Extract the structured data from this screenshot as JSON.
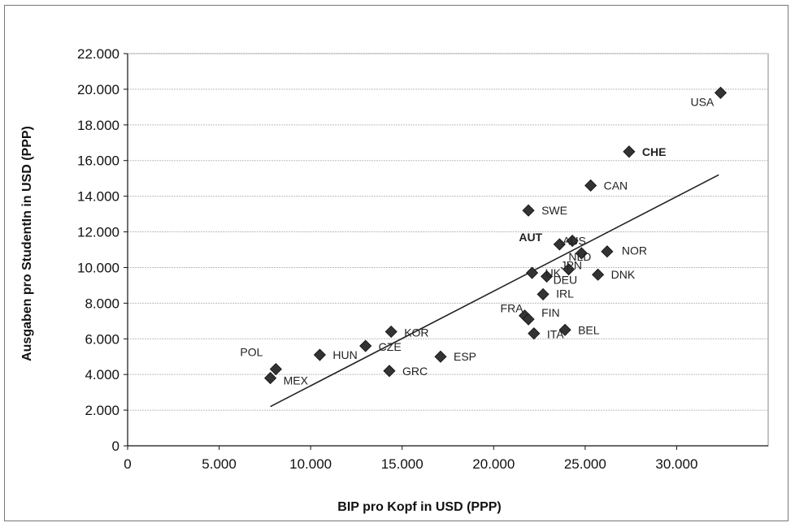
{
  "chart_data": {
    "type": "scatter",
    "xlabel": "BIP pro Kopf in USD (PPP)",
    "ylabel": "Ausgaben pro StudentIn in USD (PPP)",
    "xlim": [
      0,
      35000
    ],
    "ylim": [
      0,
      22000
    ],
    "x_ticks": [
      0,
      5000,
      10000,
      15000,
      20000,
      25000,
      30000
    ],
    "x_tick_labels": [
      "0",
      "5.000",
      "10.000",
      "15.000",
      "20.000",
      "25.000",
      "30.000"
    ],
    "y_ticks": [
      0,
      2000,
      4000,
      6000,
      8000,
      10000,
      12000,
      14000,
      16000,
      18000,
      20000,
      22000
    ],
    "y_tick_labels": [
      "0",
      "2.000",
      "4.000",
      "6.000",
      "8.000",
      "10.000",
      "12.000",
      "14.000",
      "16.000",
      "18.000",
      "20.000",
      "22.000"
    ],
    "grid": "horizontal",
    "marker": "diamond",
    "marker_color": "#333333",
    "trendline": {
      "x": [
        7800,
        32300
      ],
      "y": [
        2200,
        15200
      ]
    },
    "points": [
      {
        "label": "USA",
        "x": 32400,
        "y": 19800
      },
      {
        "label": "CHE",
        "x": 27400,
        "y": 16500
      },
      {
        "label": "CAN",
        "x": 25300,
        "y": 14600
      },
      {
        "label": "SWE",
        "x": 21900,
        "y": 13200
      },
      {
        "label": "AUT",
        "x": 23600,
        "y": 11300
      },
      {
        "label": "AUS",
        "x": 24300,
        "y": 11500
      },
      {
        "label": "NOR",
        "x": 26200,
        "y": 10900
      },
      {
        "label": "NLD",
        "x": 24800,
        "y": 10800
      },
      {
        "label": "JPN",
        "x": 24100,
        "y": 9900
      },
      {
        "label": "UK",
        "x": 22100,
        "y": 9700
      },
      {
        "label": "DEU",
        "x": 22900,
        "y": 9500
      },
      {
        "label": "DNK",
        "x": 25700,
        "y": 9600
      },
      {
        "label": "IRL",
        "x": 22700,
        "y": 8500
      },
      {
        "label": "FRA",
        "x": 21700,
        "y": 7300
      },
      {
        "label": "FIN",
        "x": 21900,
        "y": 7100
      },
      {
        "label": "ITA",
        "x": 22200,
        "y": 6300
      },
      {
        "label": "BEL",
        "x": 23900,
        "y": 6500
      },
      {
        "label": "KOR",
        "x": 14400,
        "y": 6400
      },
      {
        "label": "CZE",
        "x": 13000,
        "y": 5600
      },
      {
        "label": "HUN",
        "x": 10500,
        "y": 5100
      },
      {
        "label": "ESP",
        "x": 17100,
        "y": 5000
      },
      {
        "label": "GRC",
        "x": 14300,
        "y": 4200
      },
      {
        "label": "POL",
        "x": 8100,
        "y": 4300
      },
      {
        "label": "MEX",
        "x": 7800,
        "y": 3800
      }
    ]
  }
}
